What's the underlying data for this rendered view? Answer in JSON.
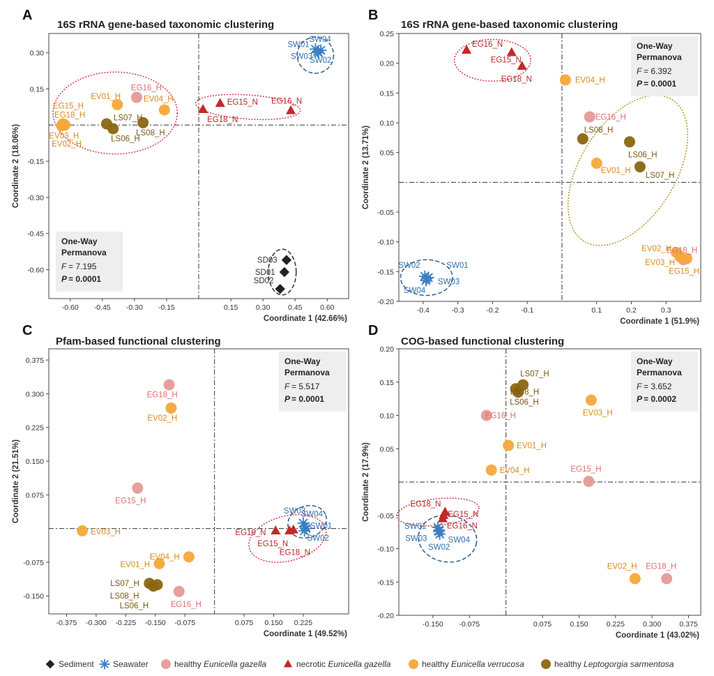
{
  "colors": {
    "sediment": "#222222",
    "seawater": "#3a7fc1",
    "healthy_gazella": "#e59a96",
    "necrotic_gazella": "#c42828",
    "healthy_verrucosa": "#f5a83a",
    "healthy_leptogorgia": "#8a6612",
    "ellipse_red": "#d0394a",
    "ellipse_blue": "#2f5f8f",
    "ellipse_black": "#333333",
    "ellipse_gold": "#b8932c"
  },
  "label_colors": {
    "sediment": "#333333",
    "seawater": "#2f6fb0",
    "healthy_gazella": "#d97070",
    "necrotic_gazella": "#b52a2a",
    "healthy_verrucosa": "#d98a1c",
    "healthy_leptogorgia": "#7a5a10"
  },
  "legend": [
    {
      "group": "sediment",
      "text": "Sediment",
      "shape": "diamond"
    },
    {
      "group": "seawater",
      "text": "Seawater",
      "shape": "star"
    },
    {
      "group": "healthy_gazella",
      "text": "healthy Eunicella gazella",
      "shape": "circle"
    },
    {
      "group": "necrotic_gazella",
      "text": "necrotic Eunicella gazella",
      "shape": "triangle"
    },
    {
      "group": "healthy_verrucosa",
      "text": "healthy Eunicella verrucosa",
      "shape": "circle"
    },
    {
      "group": "healthy_leptogorgia",
      "text": "healthy Leptogorgia sarmentosa",
      "shape": "circle"
    }
  ],
  "chart_data": [
    {
      "type": "scatter",
      "panel": "A",
      "title": "16S rRNA gene-based taxonomic clustering",
      "xlabel": "Coordinate 1 (42.66%)",
      "ylabel": "Coordinate 2 (18.06%)",
      "xlim": [
        -0.7,
        0.7
      ],
      "ylim": [
        -0.72,
        0.38
      ],
      "xticks": [
        -0.6,
        -0.45,
        -0.3,
        -0.15,
        0.15,
        0.3,
        0.45,
        0.6
      ],
      "yticks": [
        -0.6,
        -0.45,
        -0.3,
        -0.15,
        0.15,
        0.3
      ],
      "tick_decimals": 2,
      "stats": {
        "heading": [
          "One-Way",
          "Permanova"
        ],
        "f_label": "F",
        "f_value": "= 7.195",
        "p_label": "P",
        "p_value": "=  0.0001",
        "position": "bottom-left"
      },
      "points": [
        {
          "label": "SW04",
          "group": "seawater",
          "x": 0.555,
          "y": 0.305
        },
        {
          "label": "SW01",
          "group": "seawater",
          "x": 0.545,
          "y": 0.315
        },
        {
          "label": "SW03",
          "group": "seawater",
          "x": 0.56,
          "y": 0.3
        },
        {
          "label": "SW02",
          "group": "seawater",
          "x": 0.57,
          "y": 0.31
        },
        {
          "label": "EG16_H",
          "group": "healthy_gazella",
          "x": -0.29,
          "y": 0.115
        },
        {
          "label": "EV01_H",
          "group": "healthy_verrucosa",
          "x": -0.38,
          "y": 0.085
        },
        {
          "label": "EV04_H",
          "group": "healthy_verrucosa",
          "x": -0.16,
          "y": 0.063
        },
        {
          "label": "EG15_H",
          "group": "healthy_verrucosa",
          "x": -0.635,
          "y": 0.005
        },
        {
          "label": "EG18_H",
          "group": "healthy_verrucosa",
          "x": -0.625,
          "y": 0.0
        },
        {
          "label": "EV03_H",
          "group": "healthy_verrucosa",
          "x": -0.64,
          "y": -0.003
        },
        {
          "label": "EV02_H",
          "group": "healthy_verrucosa",
          "x": -0.628,
          "y": 0.003
        },
        {
          "label": "LS07_H",
          "group": "healthy_leptogorgia",
          "x": -0.43,
          "y": 0.005
        },
        {
          "label": "LS06_H",
          "group": "healthy_leptogorgia",
          "x": -0.4,
          "y": -0.015
        },
        {
          "label": "LS08_H",
          "group": "healthy_leptogorgia",
          "x": -0.26,
          "y": 0.01
        },
        {
          "label": "EG15_N",
          "group": "necrotic_gazella",
          "x": 0.1,
          "y": 0.09
        },
        {
          "label": "EG18_N",
          "group": "necrotic_gazella",
          "x": 0.02,
          "y": 0.065
        },
        {
          "label": "EG16_N",
          "group": "necrotic_gazella",
          "x": 0.43,
          "y": 0.06
        },
        {
          "label": "SD03",
          "group": "sediment",
          "x": 0.41,
          "y": -0.56
        },
        {
          "label": "SD01",
          "group": "sediment",
          "x": 0.4,
          "y": -0.61
        },
        {
          "label": "SD02",
          "group": "sediment",
          "x": 0.38,
          "y": -0.68
        }
      ]
    },
    {
      "type": "scatter",
      "panel": "B",
      "title": "16S rRNA gene-based taxonomic clustering",
      "xlabel": "Coordinate 1 (51.9%)",
      "ylabel": "Coordinate 2 (13.71%)",
      "xlim": [
        -0.47,
        0.4
      ],
      "ylim": [
        -0.2,
        0.25
      ],
      "xticks": [
        -0.4,
        -0.3,
        -0.2,
        -0.1,
        0.1,
        0.2,
        0.3
      ],
      "yticks": [
        -0.2,
        -0.15,
        -0.1,
        -0.05,
        0.05,
        0.1,
        0.15,
        0.2,
        0.25
      ],
      "tick_decimals": 2,
      "x_tick_decimals": 1,
      "stats": {
        "heading": [
          "One-Way",
          "Permanova"
        ],
        "f_label": "F",
        "f_value": "= 6.392",
        "p_label": "P",
        "p_value": "=  0.0001",
        "position": "top-right"
      },
      "points": [
        {
          "label": "EG16_N",
          "group": "necrotic_gazella",
          "x": -0.275,
          "y": 0.222
        },
        {
          "label": "EG15_N",
          "group": "necrotic_gazella",
          "x": -0.145,
          "y": 0.218
        },
        {
          "label": "EG18_N",
          "group": "necrotic_gazella",
          "x": -0.115,
          "y": 0.195
        },
        {
          "label": "EV04_H",
          "group": "healthy_verrucosa",
          "x": 0.01,
          "y": 0.172
        },
        {
          "label": "EG16_H",
          "group": "healthy_gazella",
          "x": 0.08,
          "y": 0.11
        },
        {
          "label": "LS08_H",
          "group": "healthy_leptogorgia",
          "x": 0.06,
          "y": 0.073
        },
        {
          "label": "LS06_H",
          "group": "healthy_leptogorgia",
          "x": 0.195,
          "y": 0.068
        },
        {
          "label": "EV01_H",
          "group": "healthy_verrucosa",
          "x": 0.1,
          "y": 0.032
        },
        {
          "label": "LS07_H",
          "group": "healthy_leptogorgia",
          "x": 0.225,
          "y": 0.026
        },
        {
          "label": "EG18_H",
          "group": "healthy_gazella",
          "x": 0.35,
          "y": -0.13
        },
        {
          "label": "EV02_H",
          "group": "healthy_verrucosa",
          "x": 0.33,
          "y": -0.118
        },
        {
          "label": "EV03_H",
          "group": "healthy_verrucosa",
          "x": 0.34,
          "y": -0.125
        },
        {
          "label": "EG15_H",
          "group": "healthy_verrucosa",
          "x": 0.36,
          "y": -0.128
        },
        {
          "label": "SW02",
          "group": "seawater",
          "x": -0.395,
          "y": -0.158
        },
        {
          "label": "SW01",
          "group": "seawater",
          "x": -0.385,
          "y": -0.16
        },
        {
          "label": "SW03",
          "group": "seawater",
          "x": -0.39,
          "y": -0.162
        },
        {
          "label": "SW04",
          "group": "seawater",
          "x": -0.392,
          "y": -0.165
        }
      ]
    },
    {
      "type": "scatter",
      "panel": "C",
      "title": "Pfam-based functional clustering",
      "xlabel": "Coordinate 1 (49.52%)",
      "ylabel": "Coordinate 2 (21.51%)",
      "xlim": [
        -0.42,
        0.34
      ],
      "ylim": [
        -0.19,
        0.4
      ],
      "xticks": [
        -0.375,
        -0.3,
        -0.225,
        -0.15,
        -0.075,
        0.075,
        0.15,
        0.225
      ],
      "yticks": [
        -0.15,
        -0.075,
        0.075,
        0.15,
        0.225,
        0.3,
        0.375
      ],
      "tick_decimals": 3,
      "stats": {
        "heading": [
          "One-Way",
          "Permanova"
        ],
        "f_label": "F",
        "f_value": "= 5.517",
        "p_label": "P",
        "p_value": "=  0.0001",
        "position": "top-right"
      },
      "points": [
        {
          "label": "EG18_H",
          "group": "healthy_gazella",
          "x": -0.115,
          "y": 0.32
        },
        {
          "label": "EV02_H",
          "group": "healthy_verrucosa",
          "x": -0.11,
          "y": 0.268
        },
        {
          "label": "EG15_H",
          "group": "healthy_gazella",
          "x": -0.195,
          "y": 0.09
        },
        {
          "label": "EV03_H",
          "group": "healthy_verrucosa",
          "x": -0.335,
          "y": -0.005
        },
        {
          "label": "EV04_H",
          "group": "healthy_verrucosa",
          "x": -0.065,
          "y": -0.063
        },
        {
          "label": "EV01_H",
          "group": "healthy_verrucosa",
          "x": -0.14,
          "y": -0.078
        },
        {
          "label": "LS07_H",
          "group": "healthy_leptogorgia",
          "x": -0.165,
          "y": -0.122
        },
        {
          "label": "LS08_H",
          "group": "healthy_leptogorgia",
          "x": -0.155,
          "y": -0.128
        },
        {
          "label": "LS06_H",
          "group": "healthy_leptogorgia",
          "x": -0.145,
          "y": -0.125
        },
        {
          "label": "EG16_H",
          "group": "healthy_gazella",
          "x": -0.09,
          "y": -0.14
        },
        {
          "label": "EG16_N",
          "group": "necrotic_gazella",
          "x": 0.155,
          "y": -0.005
        },
        {
          "label": "EG15_N",
          "group": "necrotic_gazella",
          "x": 0.19,
          "y": -0.005
        },
        {
          "label": "EG18_N",
          "group": "necrotic_gazella",
          "x": 0.2,
          "y": -0.003
        },
        {
          "label": "SW03",
          "group": "seawater",
          "x": 0.225,
          "y": 0.012
        },
        {
          "label": "SW04",
          "group": "seawater",
          "x": 0.23,
          "y": 0.005
        },
        {
          "label": "SW01",
          "group": "seawater",
          "x": 0.232,
          "y": 0.0
        },
        {
          "label": "SW02",
          "group": "seawater",
          "x": 0.228,
          "y": -0.005
        }
      ]
    },
    {
      "type": "scatter",
      "panel": "D",
      "title": "COG-based functional clustering",
      "xlabel": "Coordinate 1 (43.02%)",
      "ylabel": "Coordinate 2 (17.9%)",
      "xlim": [
        -0.22,
        0.4
      ],
      "ylim": [
        -0.2,
        0.2
      ],
      "xticks": [
        -0.15,
        -0.075,
        0.075,
        0.15,
        0.225,
        0.3,
        0.375
      ],
      "yticks": [
        -0.2,
        -0.15,
        -0.1,
        -0.05,
        0.05,
        0.1,
        0.15,
        0.2
      ],
      "tick_decimals": 2,
      "x_tick_decimals": 3,
      "stats": {
        "heading": [
          "One-Way",
          "Permanova"
        ],
        "f_label": "F",
        "f_value": "= 3.652",
        "p_label": "P",
        "p_value": "=  0.0002",
        "position": "top-right"
      },
      "points": [
        {
          "label": "LS07_H",
          "group": "healthy_leptogorgia",
          "x": 0.035,
          "y": 0.146
        },
        {
          "label": "LS08_H",
          "group": "healthy_leptogorgia",
          "x": 0.02,
          "y": 0.14
        },
        {
          "label": "LS06_H",
          "group": "healthy_leptogorgia",
          "x": 0.025,
          "y": 0.135
        },
        {
          "label": "EV03_H",
          "group": "healthy_verrucosa",
          "x": 0.175,
          "y": 0.123
        },
        {
          "label": "EG16_H",
          "group": "healthy_gazella",
          "x": -0.04,
          "y": 0.1
        },
        {
          "label": "EV01_H",
          "group": "healthy_verrucosa",
          "x": 0.005,
          "y": 0.055
        },
        {
          "label": "EV04_H",
          "group": "healthy_verrucosa",
          "x": -0.03,
          "y": 0.018
        },
        {
          "label": "EG15_H",
          "group": "healthy_gazella",
          "x": 0.17,
          "y": 0.001
        },
        {
          "label": "EG18_N",
          "group": "necrotic_gazella",
          "x": -0.125,
          "y": -0.045
        },
        {
          "label": "EG15_N",
          "group": "necrotic_gazella",
          "x": -0.128,
          "y": -0.05
        },
        {
          "label": "EG16_N",
          "group": "necrotic_gazella",
          "x": -0.13,
          "y": -0.055
        },
        {
          "label": "SW01",
          "group": "seawater",
          "x": -0.14,
          "y": -0.068
        },
        {
          "label": "SW03",
          "group": "seawater",
          "x": -0.138,
          "y": -0.074
        },
        {
          "label": "SW04",
          "group": "seawater",
          "x": -0.136,
          "y": -0.078
        },
        {
          "label": "SW02",
          "group": "seawater",
          "x": -0.137,
          "y": -0.072
        },
        {
          "label": "EV02_H",
          "group": "healthy_verrucosa",
          "x": 0.265,
          "y": -0.145
        },
        {
          "label": "EG18_H",
          "group": "healthy_gazella",
          "x": 0.33,
          "y": -0.145
        }
      ]
    }
  ]
}
